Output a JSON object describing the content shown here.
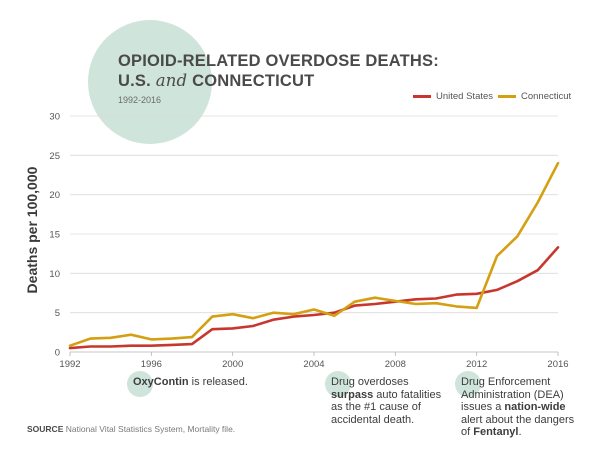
{
  "header": {
    "title_line1": "OPIOID-RELATED OVERDOSE DEATHS:",
    "title_us": "U.S.",
    "title_and": "and",
    "title_ct": "CONNECTICUT",
    "subtitle": "1992-2016"
  },
  "legend": {
    "us_label": "United States",
    "ct_label": "Connecticut"
  },
  "colors": {
    "us": "#c8372e",
    "ct": "#d4a012",
    "accent_circle": "#cfe4da",
    "grid": "#dcdcdc"
  },
  "annotations": {
    "oxy_bold": "OxyContin",
    "oxy_rest": " is released.",
    "drug_l1": "Drug overdoses",
    "drug_bold": "surpass",
    "drug_l2": " auto fatalities",
    "drug_l3": "as the #1 cause of",
    "drug_l4": "accidental death.",
    "dea_l1": "Drug Enforcement",
    "dea_l2": "Administration (DEA)",
    "dea_l3": "issues a ",
    "dea_bold": "nation-wide",
    "dea_l4": "alert about the dangers",
    "dea_l5": "of ",
    "dea_bold2": "Fentanyl",
    "dea_end": "."
  },
  "source": {
    "label": "SOURCE",
    "text": " National Vital Statistics System, Mortality file."
  },
  "chart_data": {
    "type": "line",
    "title": "OPIOID-RELATED OVERDOSE DEATHS: U.S. and CONNECTICUT",
    "subtitle": "1992-2016",
    "xlabel": "",
    "ylabel": "Deaths per 100,000",
    "xlim": [
      1992,
      2016
    ],
    "ylim": [
      0,
      30
    ],
    "x_ticks": [
      1992,
      1996,
      2000,
      2004,
      2008,
      2012,
      2016
    ],
    "y_ticks": [
      0,
      5,
      10,
      15,
      20,
      25,
      30
    ],
    "grid": true,
    "legend_position": "top-right",
    "x": [
      1992,
      1993,
      1994,
      1995,
      1996,
      1997,
      1998,
      1999,
      2000,
      2001,
      2002,
      2003,
      2004,
      2005,
      2006,
      2007,
      2008,
      2009,
      2010,
      2011,
      2012,
      2013,
      2014,
      2015,
      2016
    ],
    "series": [
      {
        "name": "United States",
        "values": [
          0.5,
          0.7,
          0.7,
          0.8,
          0.8,
          0.9,
          1.0,
          2.9,
          3.0,
          3.3,
          4.1,
          4.5,
          4.7,
          5.0,
          5.9,
          6.1,
          6.4,
          6.7,
          6.8,
          7.3,
          7.4,
          7.9,
          9.0,
          10.4,
          13.3
        ]
      },
      {
        "name": "Connecticut",
        "values": [
          0.8,
          1.7,
          1.8,
          2.2,
          1.6,
          1.7,
          1.9,
          4.5,
          4.8,
          4.3,
          5.0,
          4.8,
          5.4,
          4.6,
          6.4,
          6.9,
          6.5,
          6.1,
          6.2,
          5.8,
          5.6,
          12.2,
          14.7,
          19.0,
          24.0
        ]
      }
    ]
  }
}
